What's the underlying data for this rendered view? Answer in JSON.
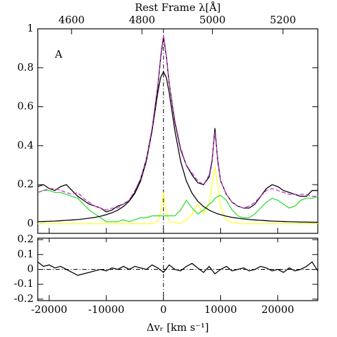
{
  "chart_data": [
    {
      "type": "line",
      "x_label": "Rest Frame λ[Å]",
      "annotation": "A",
      "xlim": [
        -22000,
        27000
      ],
      "ylim": [
        -0.05,
        1
      ],
      "x2lim": [
        4504,
        5299
      ],
      "x2ticks": [
        4600,
        4800,
        5000,
        5200
      ],
      "yticks": [
        0,
        0.2,
        0.4,
        0.6,
        0.8,
        1
      ],
      "vline": 0,
      "x": [
        -22000,
        -21000,
        -20000,
        -19000,
        -18000,
        -17000,
        -16000,
        -15000,
        -14000,
        -13000,
        -12000,
        -11000,
        -10000,
        -9000,
        -8000,
        -7000,
        -6000,
        -5000,
        -4000,
        -3000,
        -2000,
        -1000,
        -500,
        0,
        500,
        1000,
        2000,
        3000,
        4000,
        5000,
        6000,
        7000,
        8000,
        8500,
        9000,
        9500,
        10000,
        11000,
        12000,
        13000,
        14000,
        15000,
        16000,
        17000,
        18000,
        19000,
        20000,
        21000,
        22000,
        23000,
        24000,
        25000,
        26000,
        27000
      ],
      "series": [
        {
          "color": "#ffff33",
          "dash": false,
          "values": [
            0,
            0,
            0,
            0,
            0,
            0,
            0,
            0,
            0,
            0,
            0,
            0,
            0,
            0,
            0,
            0,
            0,
            0,
            0,
            0,
            0,
            0.01,
            0.06,
            0.16,
            0.06,
            0.01,
            0.005,
            0,
            0.02,
            0.05,
            0.1,
            0.05,
            0.1,
            0.2,
            0.29,
            0.2,
            0.08,
            0.02,
            0.005,
            0,
            0,
            0,
            0,
            0,
            0,
            0,
            0,
            0,
            0,
            0,
            0,
            0,
            0,
            0
          ]
        },
        {
          "color": "#33dd33",
          "dash": false,
          "values": [
            0.16,
            0.17,
            0.17,
            0.16,
            0.16,
            0.15,
            0.14,
            0.13,
            0.1,
            0.07,
            0.05,
            0.03,
            0.01,
            0.01,
            0.01,
            0.02,
            0.01,
            0.02,
            0.03,
            0.03,
            0.04,
            0.04,
            0.04,
            0.04,
            0.04,
            0.04,
            0.04,
            0.07,
            0.12,
            0.08,
            0.05,
            0.07,
            0.1,
            0.11,
            0.13,
            0.14,
            0.145,
            0.12,
            0.07,
            0.04,
            0.03,
            0.03,
            0.05,
            0.08,
            0.11,
            0.13,
            0.12,
            0.1,
            0.08,
            0.09,
            0.12,
            0.13,
            0.13,
            0.14
          ]
        },
        {
          "color": "#000000",
          "dash": false,
          "values": [
            0.01,
            0.011,
            0.012,
            0.013,
            0.015,
            0.017,
            0.019,
            0.021,
            0.024,
            0.028,
            0.032,
            0.038,
            0.046,
            0.056,
            0.069,
            0.088,
            0.115,
            0.156,
            0.219,
            0.32,
            0.476,
            0.672,
            0.75,
            0.78,
            0.75,
            0.672,
            0.476,
            0.32,
            0.219,
            0.156,
            0.115,
            0.088,
            0.069,
            0.062,
            0.056,
            0.05,
            0.046,
            0.038,
            0.032,
            0.028,
            0.024,
            0.021,
            0.019,
            0.017,
            0.015,
            0.013,
            0.012,
            0.011,
            0.01,
            0.009,
            0.008,
            0.008,
            0.007,
            0.007
          ]
        },
        {
          "color": "#000000",
          "dash": false,
          "values": [
            0.19,
            0.2,
            0.18,
            0.17,
            0.19,
            0.2,
            0.17,
            0.14,
            0.12,
            0.1,
            0.09,
            0.08,
            0.06,
            0.07,
            0.09,
            0.1,
            0.12,
            0.16,
            0.23,
            0.33,
            0.48,
            0.7,
            0.85,
            0.96,
            0.86,
            0.72,
            0.52,
            0.38,
            0.3,
            0.25,
            0.21,
            0.2,
            0.24,
            0.32,
            0.49,
            0.32,
            0.22,
            0.15,
            0.11,
            0.09,
            0.08,
            0.08,
            0.1,
            0.14,
            0.18,
            0.2,
            0.19,
            0.17,
            0.16,
            0.15,
            0.14,
            0.14,
            0.17,
            0.17
          ]
        },
        {
          "color": "#cc33cc",
          "dash": true,
          "values": [
            0.16,
            0.17,
            0.18,
            0.18,
            0.17,
            0.16,
            0.15,
            0.16,
            0.13,
            0.11,
            0.09,
            0.08,
            0.07,
            0.08,
            0.08,
            0.1,
            0.12,
            0.17,
            0.23,
            0.33,
            0.49,
            0.71,
            0.86,
            0.97,
            0.86,
            0.72,
            0.53,
            0.39,
            0.3,
            0.26,
            0.22,
            0.2,
            0.25,
            0.33,
            0.47,
            0.33,
            0.22,
            0.15,
            0.11,
            0.09,
            0.08,
            0.09,
            0.11,
            0.14,
            0.17,
            0.18,
            0.17,
            0.16,
            0.15,
            0.15,
            0.15,
            0.15,
            0.14,
            0.14
          ]
        }
      ]
    },
    {
      "type": "line",
      "x_label": "Δvᵣ [km s⁻¹]",
      "xlim": [
        -22000,
        27000
      ],
      "ylim": [
        -0.21,
        0.21
      ],
      "xticks": [
        -20000,
        -10000,
        0,
        10000,
        20000
      ],
      "yticks": [
        0.2,
        0.1,
        0,
        -0.1,
        -0.2
      ],
      "vline": 0,
      "hline": 0,
      "x": [
        -22000,
        -21000,
        -20000,
        -19000,
        -18000,
        -17000,
        -16000,
        -15000,
        -14000,
        -13000,
        -12000,
        -11000,
        -10000,
        -9000,
        -8000,
        -7000,
        -6000,
        -5000,
        -4000,
        -3000,
        -2000,
        -1000,
        0,
        1000,
        2000,
        3000,
        4000,
        5000,
        6000,
        7000,
        8000,
        9000,
        10000,
        11000,
        12000,
        13000,
        14000,
        15000,
        16000,
        17000,
        18000,
        19000,
        20000,
        21000,
        22000,
        23000,
        24000,
        25000,
        26000,
        27000
      ],
      "series": [
        {
          "color": "#000000",
          "dash": false,
          "values": [
            0.05,
            0.02,
            0.03,
            0.01,
            0.02,
            0,
            -0.02,
            -0.04,
            -0.03,
            -0.02,
            -0.01,
            0,
            -0.01,
            0.01,
            0,
            0.02,
            0,
            0.02,
            0.01,
            0,
            0.03,
            0.01,
            -0.02,
            0.03,
            0,
            -0.01,
            0.02,
            0.04,
            0.01,
            -0.02,
            0.02,
            -0.03,
            0,
            0.02,
            -0.01,
            0,
            0.01,
            -0.01,
            0,
            0.02,
            0.01,
            -0.01,
            0,
            -0.02,
            0.01,
            -0.01,
            0,
            0.02,
            0.05,
            -0.01
          ]
        }
      ]
    }
  ]
}
